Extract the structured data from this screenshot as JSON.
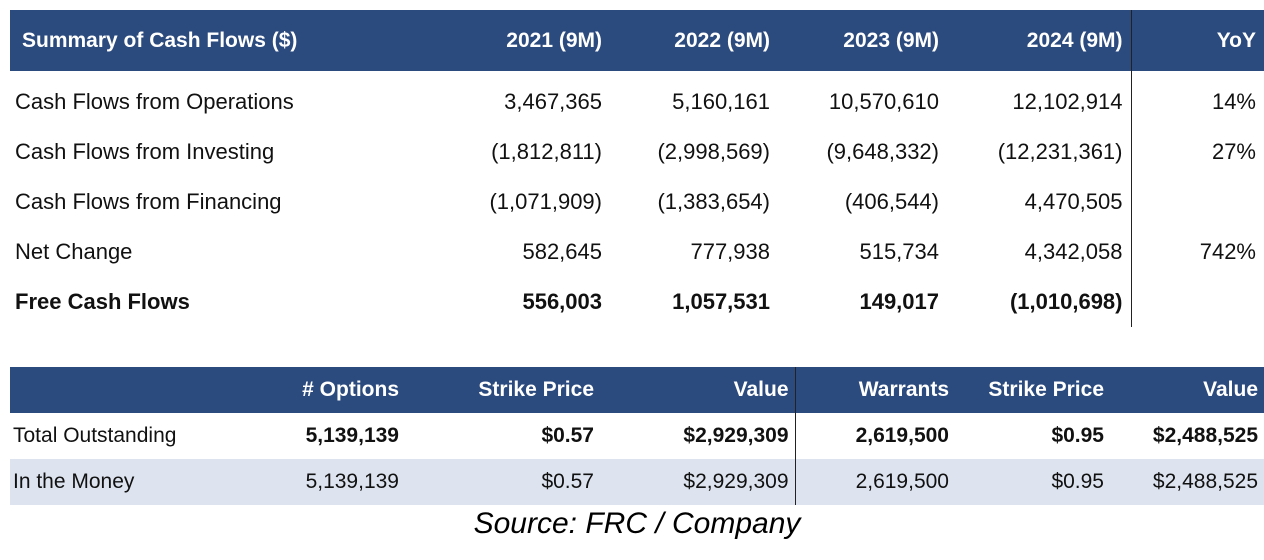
{
  "cash_flows": {
    "header": [
      "Summary of Cash Flows ($)",
      "2021 (9M)",
      "2022 (9M)",
      "2023 (9M)",
      "2024 (9M)",
      "YoY"
    ],
    "rows": [
      {
        "label": "Cash Flows from Operations",
        "values": [
          "3,467,365",
          "5,160,161",
          "10,570,610",
          "12,102,914"
        ],
        "yoy": "14%"
      },
      {
        "label": "Cash Flows from Investing",
        "values": [
          "(1,812,811)",
          "(2,998,569)",
          "(9,648,332)",
          "(12,231,361)"
        ],
        "yoy": "27%"
      },
      {
        "label": "Cash Flows from Financing",
        "values": [
          "(1,071,909)",
          "(1,383,654)",
          "(406,544)",
          "4,470,505"
        ],
        "yoy": ""
      },
      {
        "label": "Net Change",
        "values": [
          "582,645",
          "777,938",
          "515,734",
          "4,342,058"
        ],
        "yoy": "742%"
      },
      {
        "label": "Free Cash Flows",
        "values": [
          "556,003",
          "1,057,531",
          "149,017",
          "(1,010,698)"
        ],
        "yoy": ""
      }
    ]
  },
  "options_warrants": {
    "header": [
      "",
      "# Options",
      "Strike Price",
      "Value",
      "Warrants",
      "Strike Price",
      "Value"
    ],
    "rows": [
      {
        "label": "Total Outstanding",
        "values": [
          "5,139,139",
          "$0.57",
          "$2,929,309",
          "2,619,500",
          "$0.95",
          "$2,488,525"
        ]
      },
      {
        "label": "In the Money",
        "values": [
          "5,139,139",
          "$0.57",
          "$2,929,309",
          "2,619,500",
          "$0.95",
          "$2,488,525"
        ]
      }
    ]
  },
  "source": "Source: FRC / Company",
  "colors": {
    "header_bg": "#2b4a7e",
    "alt_row_bg": "#dde4ef"
  }
}
